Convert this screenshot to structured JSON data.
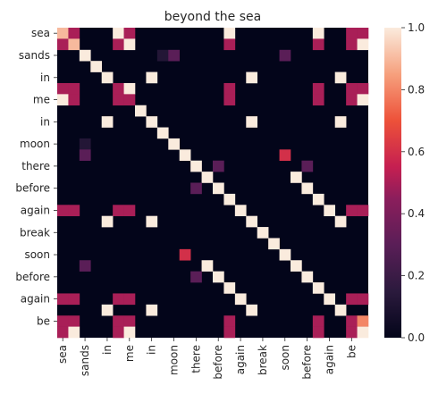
{
  "chart_data": {
    "type": "heatmap",
    "title": "beyond the sea",
    "labels": [
      "sea",
      "sands",
      "in",
      "me",
      "in",
      "moon",
      "there",
      "before",
      "again",
      "break",
      "soon",
      "before",
      "again",
      "be"
    ],
    "tokens": [
      "sea",
      "",
      "sands",
      "",
      "in",
      "",
      "me",
      "",
      "in",
      "",
      "moon",
      "",
      "there",
      "",
      "before",
      "",
      "again",
      "",
      "break",
      "",
      "soon",
      "",
      "before",
      "",
      "again",
      "",
      "be",
      ""
    ],
    "colorbar": {
      "min": 0.0,
      "max": 1.0,
      "ticks": [
        "0.0",
        "0.2",
        "0.4",
        "0.6",
        "0.8",
        "1.0"
      ],
      "colormap": "rocket"
    },
    "cells": [
      {
        "r": 0,
        "c": 0,
        "v": 0.9
      },
      {
        "r": 0,
        "c": 1,
        "v": 0.5
      },
      {
        "r": 0,
        "c": 5,
        "v": 1.0
      },
      {
        "r": 0,
        "c": 6,
        "v": 0.5
      },
      {
        "r": 0,
        "c": 15,
        "v": 1.0
      },
      {
        "r": 0,
        "c": 23,
        "v": 1.0
      },
      {
        "r": 0,
        "c": 26,
        "v": 0.5
      },
      {
        "r": 0,
        "c": 27,
        "v": 0.5
      },
      {
        "r": 1,
        "c": 0,
        "v": 0.5
      },
      {
        "r": 1,
        "c": 1,
        "v": 0.9
      },
      {
        "r": 1,
        "c": 5,
        "v": 0.5
      },
      {
        "r": 1,
        "c": 6,
        "v": 1.0
      },
      {
        "r": 1,
        "c": 15,
        "v": 0.5
      },
      {
        "r": 1,
        "c": 23,
        "v": 0.5
      },
      {
        "r": 1,
        "c": 26,
        "v": 0.5
      },
      {
        "r": 1,
        "c": 27,
        "v": 1.0
      },
      {
        "r": 2,
        "c": 2,
        "v": 1.0
      },
      {
        "r": 2,
        "c": 9,
        "v": 0.12
      },
      {
        "r": 2,
        "c": 10,
        "v": 0.3
      },
      {
        "r": 2,
        "c": 20,
        "v": 0.3
      },
      {
        "r": 3,
        "c": 3,
        "v": 1.0
      },
      {
        "r": 4,
        "c": 4,
        "v": 1.0
      },
      {
        "r": 4,
        "c": 8,
        "v": 1.0
      },
      {
        "r": 4,
        "c": 17,
        "v": 1.0
      },
      {
        "r": 4,
        "c": 25,
        "v": 1.0
      },
      {
        "r": 5,
        "c": 0,
        "v": 0.5
      },
      {
        "r": 5,
        "c": 1,
        "v": 0.5
      },
      {
        "r": 5,
        "c": 5,
        "v": 0.5
      },
      {
        "r": 5,
        "c": 6,
        "v": 1.0
      },
      {
        "r": 5,
        "c": 15,
        "v": 0.5
      },
      {
        "r": 5,
        "c": 23,
        "v": 0.5
      },
      {
        "r": 5,
        "c": 26,
        "v": 0.5
      },
      {
        "r": 5,
        "c": 27,
        "v": 0.5
      },
      {
        "r": 6,
        "c": 0,
        "v": 1.0
      },
      {
        "r": 6,
        "c": 1,
        "v": 0.5
      },
      {
        "r": 6,
        "c": 5,
        "v": 0.5
      },
      {
        "r": 6,
        "c": 6,
        "v": 0.5
      },
      {
        "r": 6,
        "c": 15,
        "v": 0.5
      },
      {
        "r": 6,
        "c": 23,
        "v": 0.5
      },
      {
        "r": 6,
        "c": 26,
        "v": 0.5
      },
      {
        "r": 6,
        "c": 27,
        "v": 1.0
      },
      {
        "r": 7,
        "c": 7,
        "v": 1.0
      },
      {
        "r": 8,
        "c": 4,
        "v": 1.0
      },
      {
        "r": 8,
        "c": 8,
        "v": 1.0
      },
      {
        "r": 8,
        "c": 17,
        "v": 1.0
      },
      {
        "r": 8,
        "c": 25,
        "v": 1.0
      },
      {
        "r": 9,
        "c": 9,
        "v": 1.0
      },
      {
        "r": 10,
        "c": 2,
        "v": 0.12
      },
      {
        "r": 10,
        "c": 10,
        "v": 1.0
      },
      {
        "r": 11,
        "c": 2,
        "v": 0.3
      },
      {
        "r": 11,
        "c": 11,
        "v": 1.0
      },
      {
        "r": 11,
        "c": 20,
        "v": 0.6
      },
      {
        "r": 12,
        "c": 12,
        "v": 1.0
      },
      {
        "r": 12,
        "c": 14,
        "v": 0.3
      },
      {
        "r": 12,
        "c": 22,
        "v": 0.3
      },
      {
        "r": 13,
        "c": 13,
        "v": 1.0
      },
      {
        "r": 13,
        "c": 21,
        "v": 1.0
      },
      {
        "r": 14,
        "c": 12,
        "v": 0.3
      },
      {
        "r": 14,
        "c": 14,
        "v": 1.0
      },
      {
        "r": 14,
        "c": 22,
        "v": 1.0
      },
      {
        "r": 15,
        "c": 15,
        "v": 1.0
      },
      {
        "r": 15,
        "c": 23,
        "v": 1.0
      },
      {
        "r": 16,
        "c": 0,
        "v": 0.5
      },
      {
        "r": 16,
        "c": 1,
        "v": 0.5
      },
      {
        "r": 16,
        "c": 5,
        "v": 0.5
      },
      {
        "r": 16,
        "c": 6,
        "v": 0.5
      },
      {
        "r": 16,
        "c": 16,
        "v": 1.0
      },
      {
        "r": 16,
        "c": 24,
        "v": 1.0
      },
      {
        "r": 16,
        "c": 26,
        "v": 0.5
      },
      {
        "r": 16,
        "c": 27,
        "v": 0.5
      },
      {
        "r": 17,
        "c": 4,
        "v": 1.0
      },
      {
        "r": 17,
        "c": 8,
        "v": 1.0
      },
      {
        "r": 17,
        "c": 17,
        "v": 1.0
      },
      {
        "r": 17,
        "c": 25,
        "v": 1.0
      },
      {
        "r": 18,
        "c": 18,
        "v": 1.0
      },
      {
        "r": 19,
        "c": 19,
        "v": 1.0
      },
      {
        "r": 20,
        "c": 11,
        "v": 0.6
      },
      {
        "r": 20,
        "c": 20,
        "v": 1.0
      },
      {
        "r": 21,
        "c": 2,
        "v": 0.3
      },
      {
        "r": 21,
        "c": 13,
        "v": 1.0
      },
      {
        "r": 21,
        "c": 21,
        "v": 1.0
      },
      {
        "r": 22,
        "c": 12,
        "v": 0.3
      },
      {
        "r": 22,
        "c": 14,
        "v": 1.0
      },
      {
        "r": 22,
        "c": 22,
        "v": 1.0
      },
      {
        "r": 23,
        "c": 15,
        "v": 1.0
      },
      {
        "r": 23,
        "c": 23,
        "v": 1.0
      },
      {
        "r": 24,
        "c": 0,
        "v": 0.5
      },
      {
        "r": 24,
        "c": 1,
        "v": 0.5
      },
      {
        "r": 24,
        "c": 5,
        "v": 0.5
      },
      {
        "r": 24,
        "c": 6,
        "v": 0.5
      },
      {
        "r": 24,
        "c": 16,
        "v": 1.0
      },
      {
        "r": 24,
        "c": 24,
        "v": 1.0
      },
      {
        "r": 24,
        "c": 26,
        "v": 0.5
      },
      {
        "r": 24,
        "c": 27,
        "v": 0.5
      },
      {
        "r": 25,
        "c": 4,
        "v": 1.0
      },
      {
        "r": 25,
        "c": 8,
        "v": 1.0
      },
      {
        "r": 25,
        "c": 17,
        "v": 1.0
      },
      {
        "r": 25,
        "c": 25,
        "v": 1.0
      },
      {
        "r": 26,
        "c": 0,
        "v": 0.5
      },
      {
        "r": 26,
        "c": 1,
        "v": 0.5
      },
      {
        "r": 26,
        "c": 5,
        "v": 0.5
      },
      {
        "r": 26,
        "c": 6,
        "v": 0.5
      },
      {
        "r": 26,
        "c": 15,
        "v": 0.5
      },
      {
        "r": 26,
        "c": 23,
        "v": 0.5
      },
      {
        "r": 26,
        "c": 26,
        "v": 0.5
      },
      {
        "r": 26,
        "c": 27,
        "v": 0.8
      },
      {
        "r": 27,
        "c": 0,
        "v": 0.5
      },
      {
        "r": 27,
        "c": 1,
        "v": 1.0
      },
      {
        "r": 27,
        "c": 5,
        "v": 0.5
      },
      {
        "r": 27,
        "c": 6,
        "v": 1.0
      },
      {
        "r": 27,
        "c": 15,
        "v": 0.5
      },
      {
        "r": 27,
        "c": 23,
        "v": 0.5
      },
      {
        "r": 27,
        "c": 26,
        "v": 0.5
      },
      {
        "r": 27,
        "c": 27,
        "v": 1.0
      }
    ]
  }
}
